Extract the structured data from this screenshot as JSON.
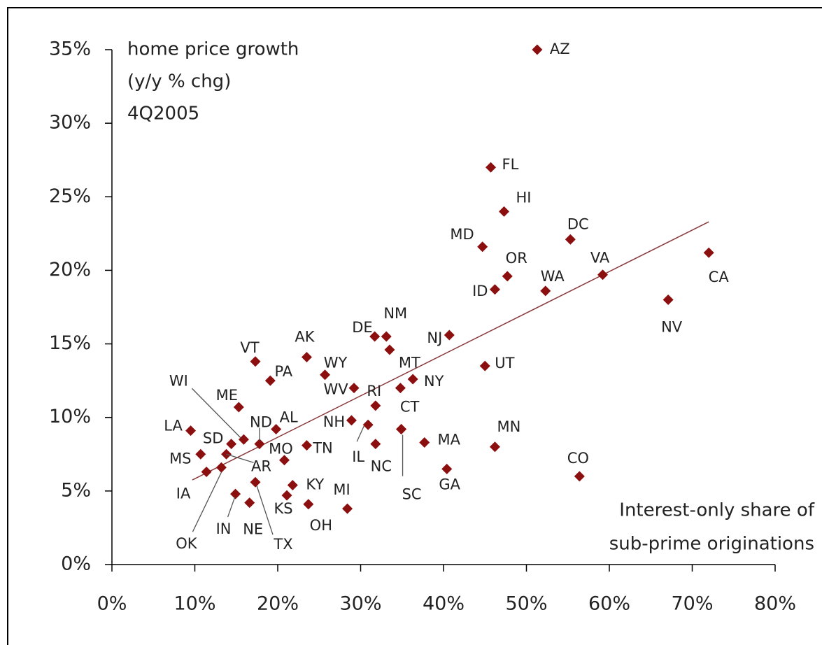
{
  "chart_data": {
    "type": "scatter",
    "title": [
      "home price growth",
      "(y/y % chg)",
      "4Q2005"
    ],
    "x_label": [
      "Interest-only share of",
      "sub-prime originations"
    ],
    "color": "#8b0f0f",
    "labels": [
      "AZ",
      "FL",
      "HI",
      "MD",
      "DC",
      "OR",
      "ID",
      "WA",
      "VA",
      "CA",
      "NV",
      "NM",
      "DE",
      null,
      "NJ",
      "UT",
      "AK",
      "VT",
      "PA",
      "WY",
      "WV",
      "RI",
      "MT",
      "NY",
      "CT",
      "SC",
      "NH",
      "IL",
      "NC",
      "MA",
      "MN",
      "CO",
      "GA",
      "MI",
      "OH",
      "KY",
      "KS",
      "TX",
      "NE",
      "IN",
      "MO",
      "TN",
      "AL",
      "ND",
      "ME",
      "WI",
      "SD",
      "AR",
      "MS",
      "LA",
      "IA",
      "OK"
    ],
    "x": [
      51.3,
      45.7,
      47.3,
      44.7,
      55.3,
      47.7,
      46.2,
      52.3,
      59.2,
      72.0,
      67.1,
      33.1,
      31.7,
      33.5,
      40.7,
      45.0,
      23.5,
      17.3,
      19.1,
      25.7,
      29.2,
      31.8,
      34.8,
      36.3,
      34.9,
      34.9,
      28.9,
      30.9,
      31.8,
      37.7,
      46.2,
      56.4,
      40.4,
      28.4,
      23.7,
      21.8,
      21.1,
      17.3,
      16.6,
      14.9,
      20.8,
      23.5,
      19.8,
      17.8,
      15.3,
      15.9,
      14.4,
      13.8,
      10.7,
      9.5,
      11.4,
      13.2
    ],
    "y": [
      35.0,
      27.0,
      24.0,
      21.6,
      22.1,
      19.6,
      18.7,
      18.6,
      19.7,
      21.2,
      18.0,
      15.5,
      15.5,
      14.6,
      15.6,
      13.5,
      14.1,
      13.8,
      12.5,
      12.9,
      12.0,
      10.8,
      12.0,
      12.6,
      9.2,
      9.2,
      9.8,
      9.5,
      8.2,
      8.3,
      8.0,
      6.0,
      6.5,
      3.8,
      4.1,
      5.4,
      4.7,
      5.6,
      4.2,
      4.8,
      7.1,
      8.1,
      9.2,
      8.2,
      10.7,
      8.5,
      8.2,
      7.5,
      7.5,
      9.1,
      6.3,
      6.6
    ],
    "trendline": {
      "x": [
        9.7,
        72.0
      ],
      "y": [
        5.75,
        23.3
      ]
    },
    "xlim": [
      0,
      80
    ],
    "xticks": [
      {
        "value": 0,
        "label": "0%"
      },
      {
        "value": 10,
        "label": "10%"
      },
      {
        "value": 20,
        "label": "20%"
      },
      {
        "value": 30,
        "label": "30%"
      },
      {
        "value": 40,
        "label": "40%"
      },
      {
        "value": 50,
        "label": "50%"
      },
      {
        "value": 60,
        "label": "60%"
      },
      {
        "value": 70,
        "label": "70%"
      },
      {
        "value": 80,
        "label": "80%"
      }
    ],
    "ylim": [
      0,
      35
    ],
    "yticks": [
      {
        "value": 0,
        "label": "0%"
      },
      {
        "value": 5,
        "label": "5%"
      },
      {
        "value": 10,
        "label": "10%"
      },
      {
        "value": 15,
        "label": "15%"
      },
      {
        "value": 20,
        "label": "20%"
      },
      {
        "value": 25,
        "label": "25%"
      },
      {
        "value": 30,
        "label": "30%"
      },
      {
        "value": 35,
        "label": "35%"
      }
    ]
  }
}
